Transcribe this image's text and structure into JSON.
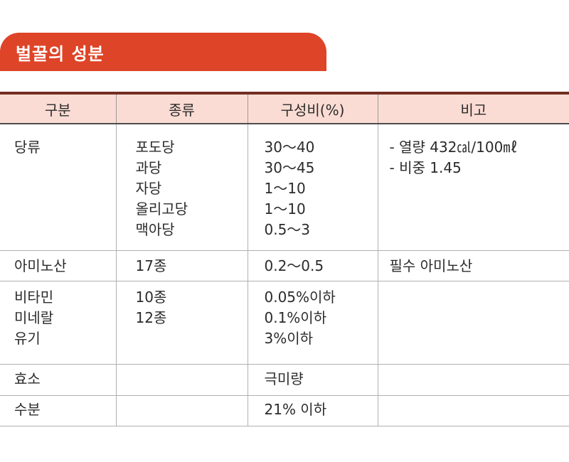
{
  "title": "벌꿀의 성분",
  "table": {
    "headers": [
      "구분",
      "종류",
      "구성비(%)",
      "비고"
    ],
    "rows": [
      {
        "category": [
          "당류"
        ],
        "type": [
          "포도당",
          "과당",
          "자당",
          "올리고당",
          "맥아당"
        ],
        "ratio": [
          "30～40",
          "30～45",
          "1～10",
          "1～10",
          "0.5～3"
        ],
        "note": [
          "- 열량 432㎈/100㎖",
          "- 비중 1.45"
        ]
      },
      {
        "category": [
          "아미노산"
        ],
        "type": [
          "17종"
        ],
        "ratio": [
          "0.2～0.5"
        ],
        "note": [
          "필수 아미노산"
        ]
      },
      {
        "category": [
          "비타민",
          "미네랄",
          "유기"
        ],
        "type": [
          "10종",
          "12종"
        ],
        "ratio": [
          "0.05%이하",
          "0.1%이하",
          "3%이하"
        ],
        "note": []
      },
      {
        "category": [
          "효소"
        ],
        "type": [],
        "ratio": [
          "극미량"
        ],
        "note": []
      },
      {
        "category": [
          "수분"
        ],
        "type": [],
        "ratio": [
          "21% 이하"
        ],
        "note": []
      }
    ]
  }
}
